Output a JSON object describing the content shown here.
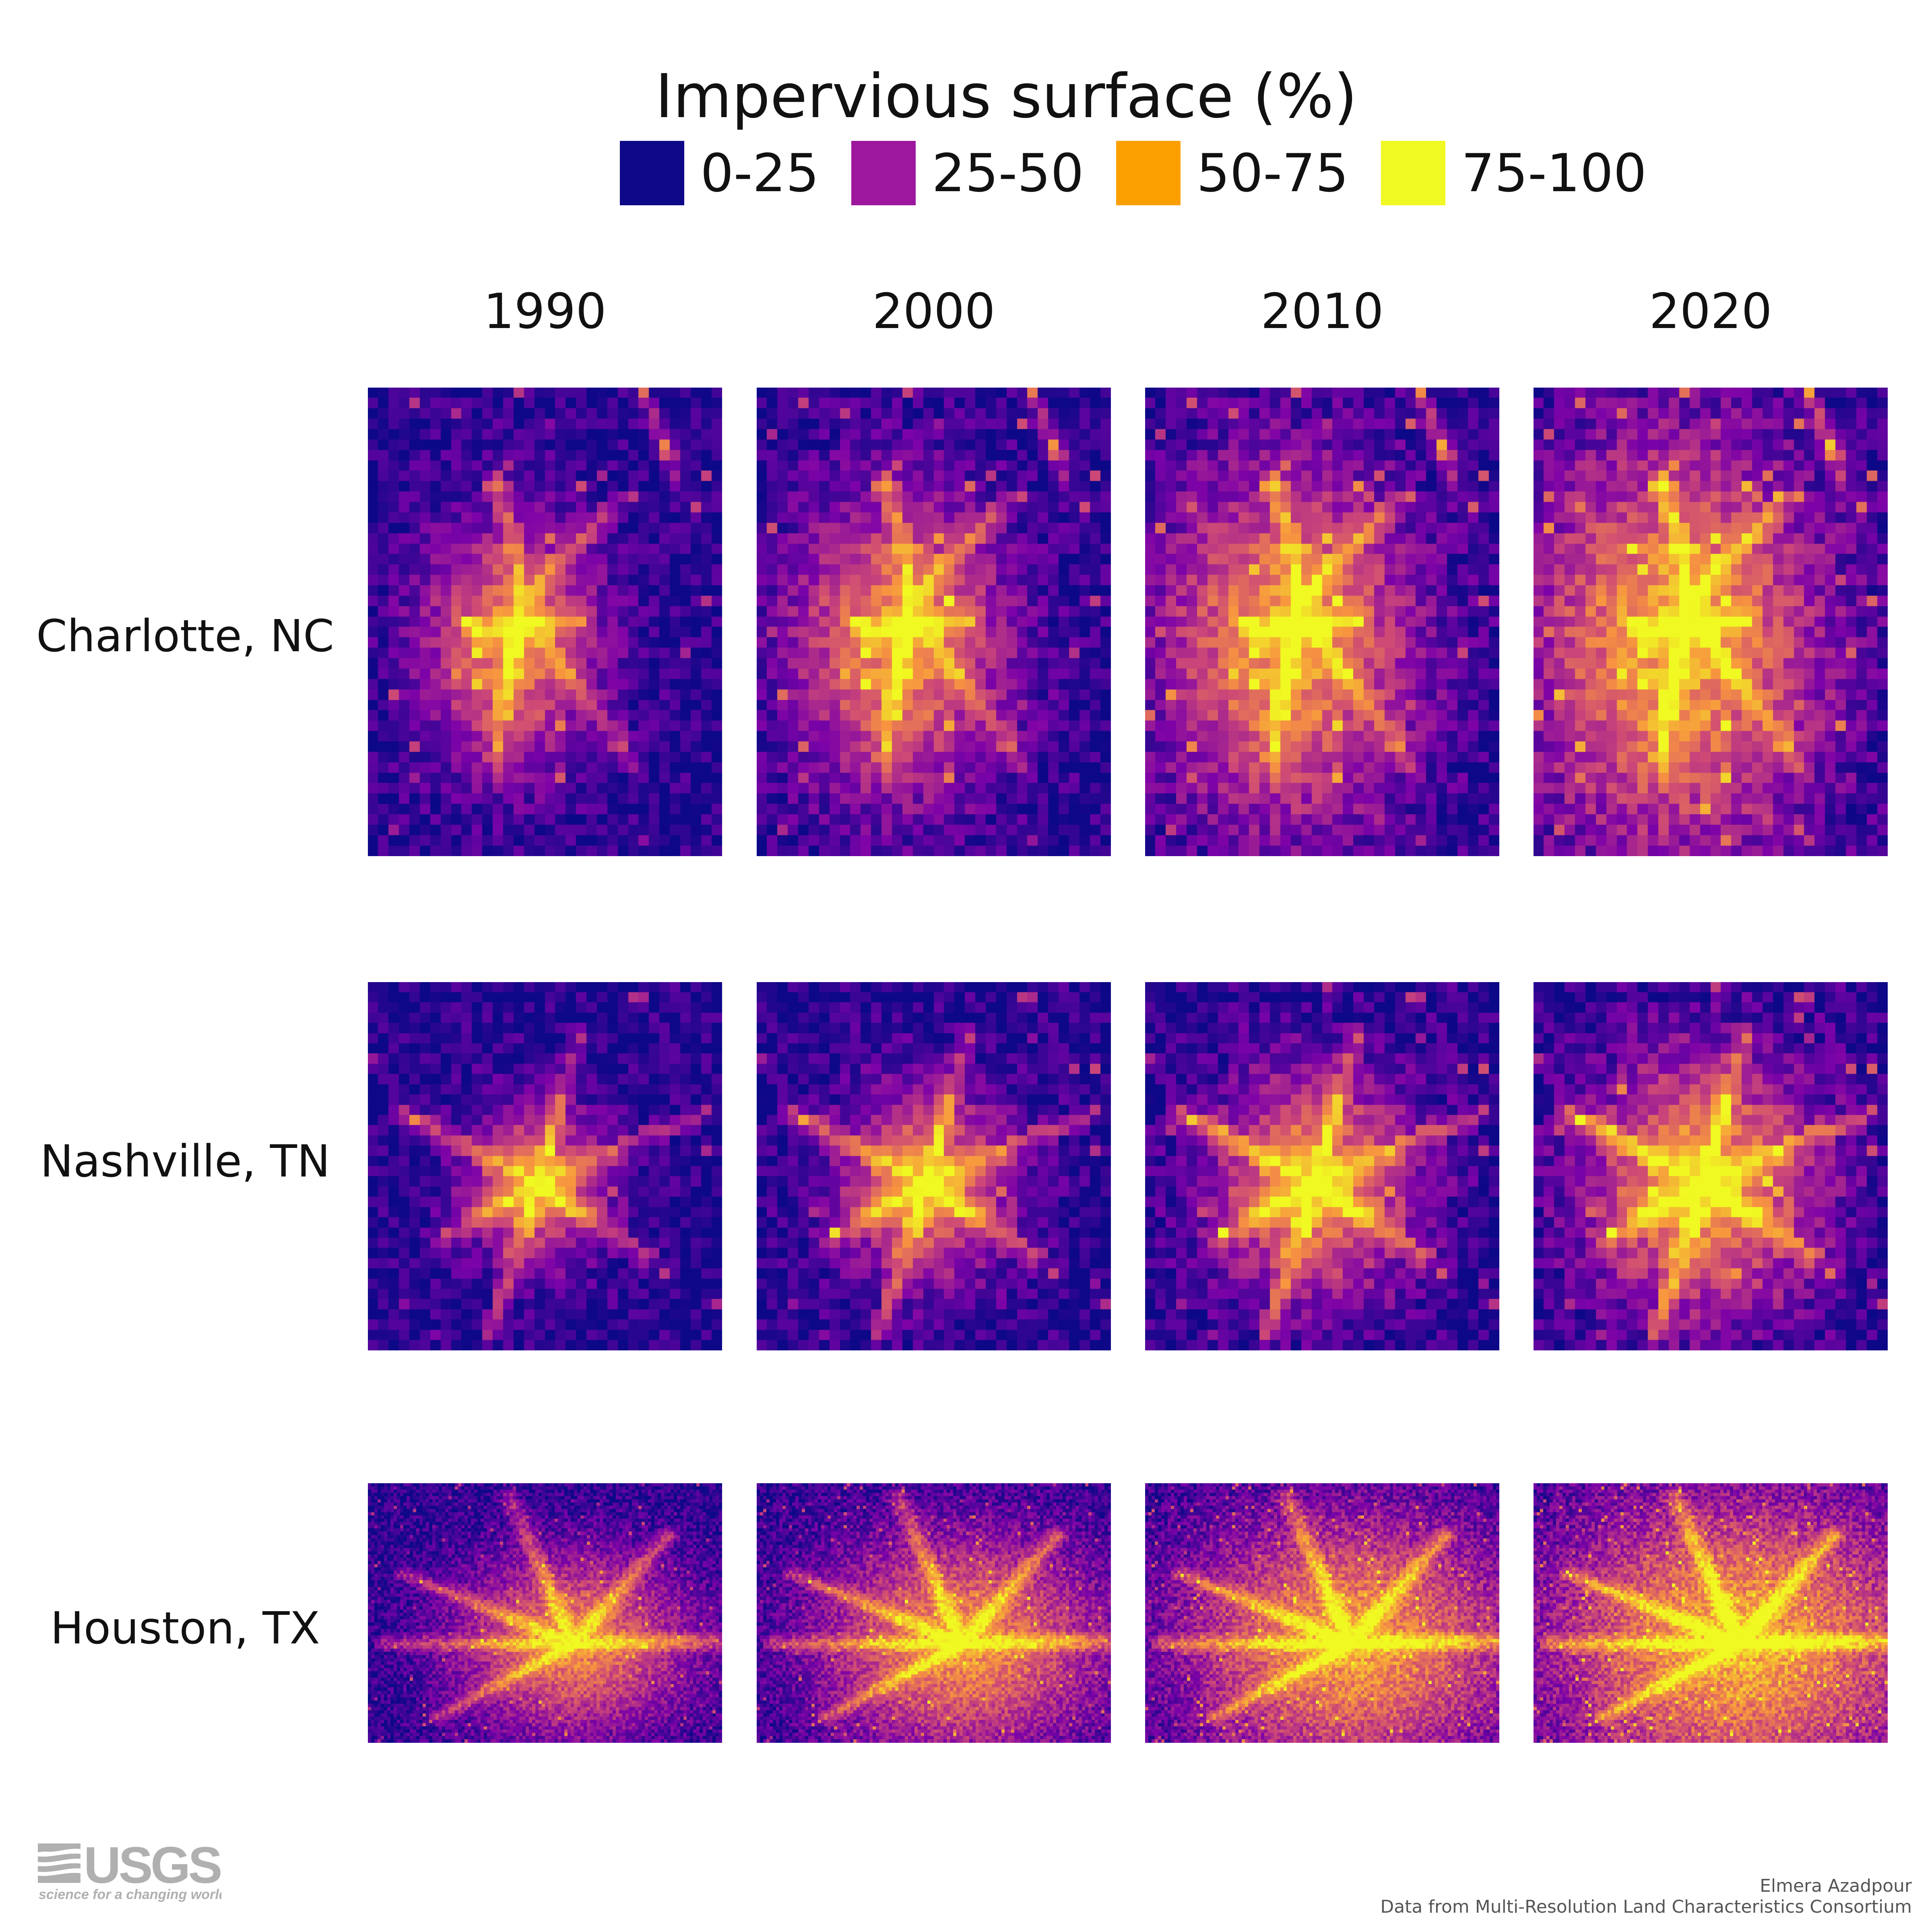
{
  "legend": {
    "title": "Impervious surface (%)",
    "items": [
      {
        "label": "0-25",
        "color": "#0d0887"
      },
      {
        "label": "25-50",
        "color": "#9c179e"
      },
      {
        "label": "50-75",
        "color": "#fb9f00"
      },
      {
        "label": "75-100",
        "color": "#f0f921"
      }
    ]
  },
  "years": [
    "1990",
    "2000",
    "2010",
    "2020"
  ],
  "cities": [
    "Charlotte, NC",
    "Nashville, TN",
    "Houston, TX"
  ],
  "logo": {
    "text": "USGS",
    "tagline": "science for a changing world",
    "color": "#b0b0b0"
  },
  "credits": {
    "author": "Elmera Azadpour",
    "source": "Data from Multi-Resolution Land Characteristics Consortium"
  }
}
